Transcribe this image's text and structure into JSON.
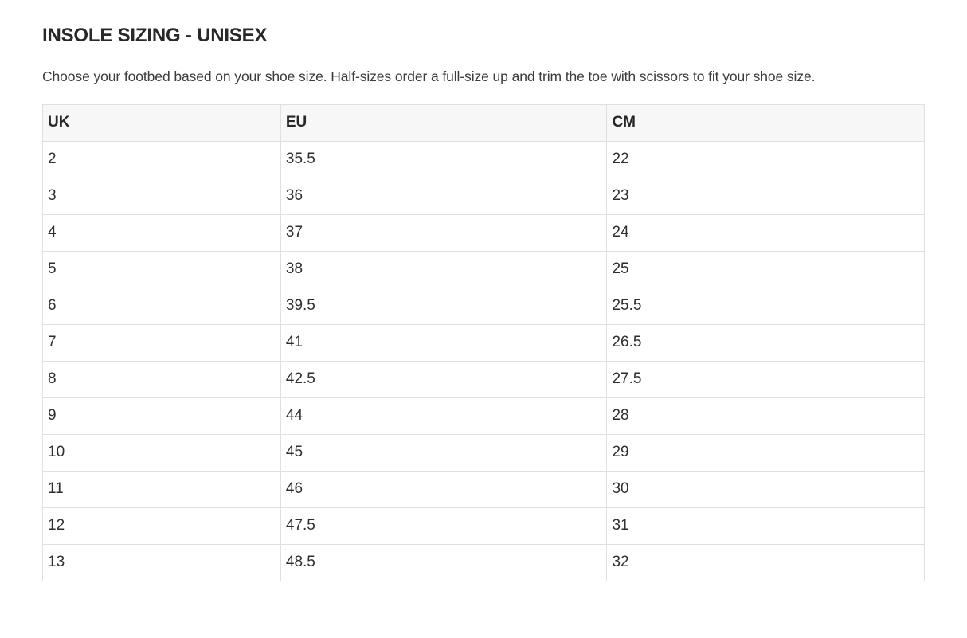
{
  "header": {
    "title": "INSOLE SIZING - UNISEX",
    "description": "Choose your footbed based on your shoe size. Half-sizes order a full-size up and trim the toe with scissors to fit your shoe size."
  },
  "size_table": {
    "columns": [
      "UK",
      "EU",
      "CM"
    ],
    "rows": [
      {
        "uk": "2",
        "eu": "35.5",
        "cm": "22"
      },
      {
        "uk": "3",
        "eu": "36",
        "cm": "23"
      },
      {
        "uk": "4",
        "eu": "37",
        "cm": "24"
      },
      {
        "uk": "5",
        "eu": "38",
        "cm": "25"
      },
      {
        "uk": "6",
        "eu": "39.5",
        "cm": "25.5"
      },
      {
        "uk": "7",
        "eu": "41",
        "cm": "26.5"
      },
      {
        "uk": "8",
        "eu": "42.5",
        "cm": "27.5"
      },
      {
        "uk": "9",
        "eu": "44",
        "cm": "28"
      },
      {
        "uk": "10",
        "eu": "45",
        "cm": "29"
      },
      {
        "uk": "11",
        "eu": "46",
        "cm": "30"
      },
      {
        "uk": "12",
        "eu": "47.5",
        "cm": "31"
      },
      {
        "uk": "13",
        "eu": "48.5",
        "cm": "32"
      }
    ]
  },
  "colors": {
    "background": "#ffffff",
    "header_row_bg": "#f7f7f7",
    "table_border": "#e0e0e0",
    "title_text": "#282828",
    "body_text": "#3c3c3c"
  }
}
